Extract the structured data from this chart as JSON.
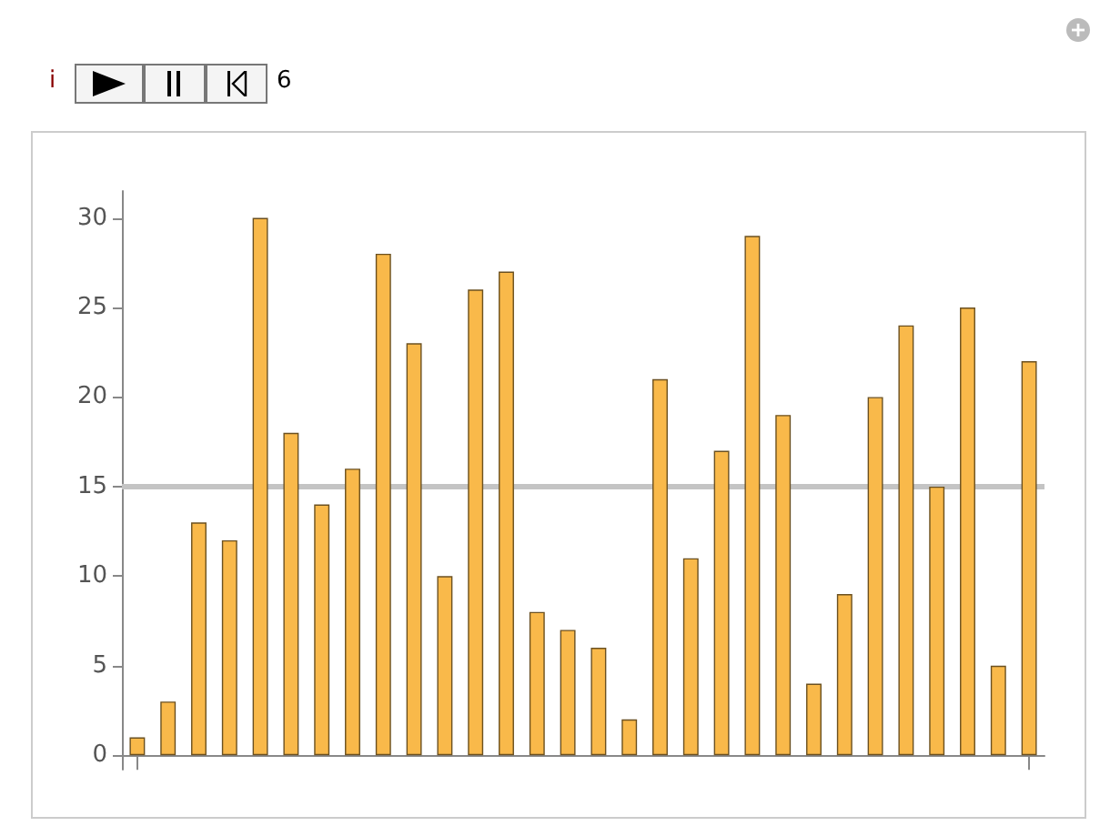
{
  "chart_data": {
    "type": "bar",
    "annotations": [
      "i",
      "6"
    ],
    "categories": [
      null,
      null,
      null,
      null,
      null,
      null,
      null,
      null,
      null,
      null,
      null,
      null,
      null,
      null,
      null,
      null,
      null,
      null,
      null,
      null,
      null,
      null,
      null,
      null,
      null,
      null,
      null,
      null,
      null,
      null
    ],
    "values": [
      1,
      3,
      13,
      12,
      30,
      18,
      14,
      16,
      28,
      23,
      10,
      26,
      27,
      8,
      7,
      6,
      2,
      21,
      11,
      17,
      29,
      19,
      4,
      9,
      20,
      24,
      15,
      25,
      5,
      22
    ],
    "color": "#f9b94a",
    "ylim": [
      -0.8,
      31.5
    ],
    "yticks": [
      0,
      5,
      10,
      15,
      20,
      25,
      30
    ],
    "ref_lines": [
      {
        "axis": "y",
        "value": 15,
        "color": "#c4c4c4"
      }
    ],
    "tick_labels": "y"
  }
}
